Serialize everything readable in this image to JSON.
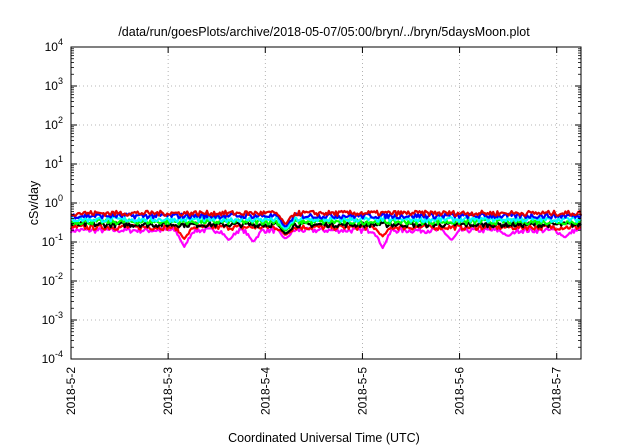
{
  "chart_data": {
    "type": "line",
    "title": "/data/run/goesPlots/archive/2018-05-07/05:00/bryn/../bryn/5daysMoon.plot",
    "xlabel": "Coordinated Universal Time (UTC)",
    "ylabel": "cSv/day",
    "yscale": "log",
    "ylim": [
      0.0001,
      10000
    ],
    "ytick_values": [
      0.0001,
      0.001,
      0.01,
      0.1,
      1,
      10,
      100,
      1000,
      10000
    ],
    "ytick_labels": [
      {
        "base": "10",
        "exp": "-4"
      },
      {
        "base": "10",
        "exp": "-3"
      },
      {
        "base": "10",
        "exp": "-2"
      },
      {
        "base": "10",
        "exp": "-1"
      },
      {
        "base": "10",
        "exp": "0"
      },
      {
        "base": "10",
        "exp": "1"
      },
      {
        "base": "10",
        "exp": "2"
      },
      {
        "base": "10",
        "exp": "3"
      },
      {
        "base": "10",
        "exp": "4"
      }
    ],
    "xtick_labels": [
      "2018-5-2",
      "2018-5-3",
      "2018-5-4",
      "2018-5-5",
      "2018-5-6",
      "2018-5-7"
    ],
    "xlim": [
      "2018-05-02T00:00",
      "2018-05-07T06:00"
    ],
    "grid": true,
    "legend": "none",
    "series": [
      {
        "color": "#ff00ff",
        "base": 0.2,
        "dips": [
          [
            "2018-05-03T04:00",
            0.075
          ],
          [
            "2018-05-03T15:00",
            0.11
          ],
          [
            "2018-05-03T21:00",
            0.1
          ],
          [
            "2018-05-04T05:00",
            0.12
          ],
          [
            "2018-05-05T05:00",
            0.07
          ],
          [
            "2018-05-05T22:00",
            0.11
          ],
          [
            "2018-05-06T12:00",
            0.14
          ],
          [
            "2018-05-07T02:00",
            0.13
          ]
        ]
      },
      {
        "color": "#ff0000",
        "base": 0.24,
        "dips": [
          [
            "2018-05-03T04:00",
            0.12
          ],
          [
            "2018-05-04T05:00",
            0.15
          ],
          [
            "2018-05-05T05:00",
            0.14
          ]
        ]
      },
      {
        "color": "#000000",
        "base": 0.28,
        "dips": [
          [
            "2018-05-04T05:00",
            0.16
          ]
        ]
      },
      {
        "color": "#00ff00",
        "base": 0.33,
        "dips": [
          [
            "2018-05-04T05:00",
            0.19
          ]
        ]
      },
      {
        "color": "#00ffff",
        "base": 0.38,
        "dips": [
          [
            "2018-05-04T05:00",
            0.21
          ]
        ]
      },
      {
        "color": "#0000ff",
        "base": 0.47,
        "dips": [
          [
            "2018-05-04T05:00",
            0.24
          ]
        ]
      },
      {
        "color": "#e00000",
        "base": 0.55,
        "dips": [
          [
            "2018-05-04T05:00",
            0.28
          ]
        ]
      }
    ]
  }
}
